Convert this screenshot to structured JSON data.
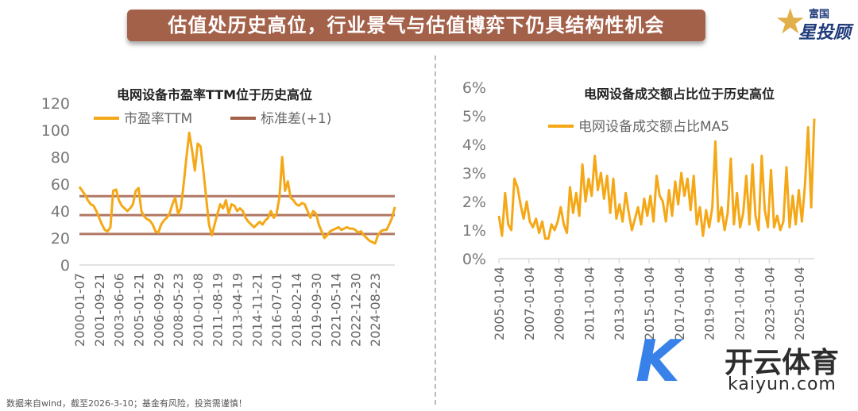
{
  "header": {
    "title": "估值处历史高位，行业景气与估值博弈下仍具结构性机会",
    "logo_text_top": "富国",
    "logo_text_bottom": "星投顾"
  },
  "footer": {
    "note": "数据来自wind，截至2026-3-10；基金有风险，投资需谨慎！"
  },
  "watermark": {
    "cn": "开云体育",
    "en": "kaiyun.com"
  },
  "colors": {
    "series": "#f5a817",
    "stdline": "#a4614a",
    "banner": "#a4614a"
  },
  "chart_data": [
    {
      "type": "line",
      "title": "电网设备市盈率TTM位于历史高位",
      "ylim": [
        0,
        120
      ],
      "yticks": [
        "0",
        "20",
        "40",
        "60",
        "80",
        "100",
        "120"
      ],
      "xticks": [
        "2000-01-07",
        "2001-09-21",
        "2003-06-06",
        "2005-01-21",
        "2006-09-29",
        "2008-05-23",
        "2010-01-08",
        "2011-08-19",
        "2013-04-19",
        "2014-11-21",
        "2016-07-01",
        "2018-02-14",
        "2019-09-30",
        "2021-05-14",
        "2022-12-30",
        "2024-08-23"
      ],
      "legend": [
        "市盈率TTM",
        "标准差(+1)"
      ],
      "legend_position": "top",
      "hlines": [
        51,
        37,
        23
      ],
      "series": [
        {
          "name": "市盈率TTM",
          "values": [
            58,
            55,
            52,
            48,
            45,
            44,
            40,
            35,
            30,
            26,
            25,
            28,
            55,
            56,
            48,
            44,
            42,
            40,
            42,
            45,
            55,
            57,
            40,
            36,
            34,
            33,
            30,
            25,
            24,
            30,
            33,
            35,
            38,
            45,
            50,
            38,
            42,
            60,
            80,
            98,
            85,
            70,
            90,
            88,
            70,
            50,
            30,
            22,
            30,
            38,
            45,
            42,
            48,
            38,
            45,
            44,
            40,
            42,
            40,
            35,
            32,
            30,
            28,
            30,
            32,
            30,
            33,
            35,
            40,
            35,
            38,
            50,
            80,
            55,
            62,
            50,
            48,
            45,
            44,
            46,
            45,
            40,
            35,
            40,
            38,
            30,
            25,
            20,
            22,
            25,
            26,
            27,
            28,
            26,
            27,
            28,
            27,
            27,
            26,
            24,
            25,
            22,
            20,
            18,
            17,
            16,
            22,
            25,
            26,
            26,
            30,
            35,
            43
          ]
        }
      ]
    },
    {
      "type": "line",
      "title": "电网设备成交额占比位于历史高位",
      "ylim": [
        0,
        6
      ],
      "yticks": [
        "0%",
        "1%",
        "2%",
        "3%",
        "4%",
        "5%",
        "6%"
      ],
      "xticks": [
        "2005-01-04",
        "2007-01-04",
        "2009-01-04",
        "2011-01-04",
        "2013-01-04",
        "2015-01-04",
        "2017-01-04",
        "2019-01-04",
        "2021-01-04",
        "2023-01-04",
        "2025-01-04"
      ],
      "legend": [
        "电网设备成交额占比MA5"
      ],
      "legend_position": "top",
      "series": [
        {
          "name": "电网设备成交额占比MA5",
          "values": [
            1.5,
            0.8,
            2.3,
            1.2,
            1.0,
            2.8,
            2.5,
            1.9,
            1.4,
            2.0,
            1.3,
            1.1,
            1.4,
            0.9,
            1.3,
            0.7,
            0.7,
            1.2,
            1.0,
            1.3,
            1.8,
            1.2,
            0.9,
            2.5,
            1.6,
            2.3,
            1.5,
            3.3,
            2.0,
            2.8,
            2.2,
            3.6,
            2.4,
            3.0,
            2.1,
            2.9,
            1.6,
            2.8,
            1.4,
            1.9,
            1.3,
            2.3,
            1.6,
            1.0,
            1.4,
            1.8,
            1.2,
            2.1,
            1.5,
            2.2,
            1.3,
            2.9,
            2.2,
            2.0,
            1.3,
            2.4,
            1.5,
            2.7,
            1.9,
            3.0,
            2.2,
            2.8,
            1.7,
            2.9,
            1.2,
            1.8,
            0.8,
            1.7,
            1.1,
            1.8,
            4.1,
            1.3,
            1.8,
            1.0,
            1.6,
            3.5,
            1.2,
            2.3,
            1.1,
            1.6,
            2.9,
            1.2,
            3.3,
            1.5,
            1.0,
            3.6,
            1.7,
            1.1,
            3.1,
            1.1,
            1.5,
            1.0,
            1.3,
            3.2,
            1.1,
            2.2,
            1.2,
            2.4,
            1.3,
            2.6,
            4.6,
            1.8,
            4.9
          ]
        }
      ]
    }
  ]
}
